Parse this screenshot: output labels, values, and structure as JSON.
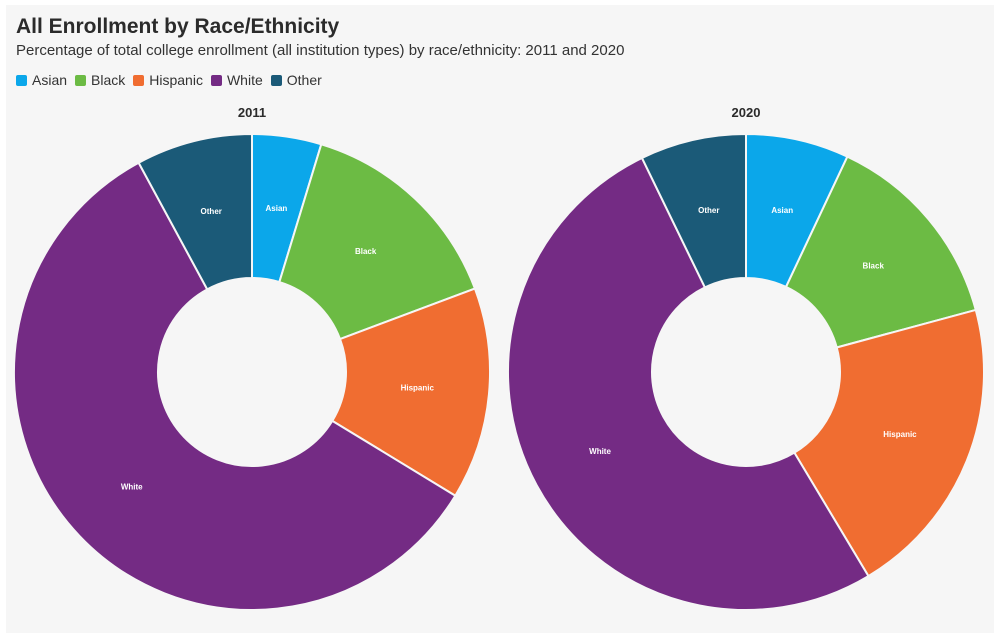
{
  "header": {
    "title": "All Enrollment by Race/Ethnicity",
    "subtitle": "Percentage of total college enrollment (all institution types) by race/ethnicity: 2011 and 2020"
  },
  "colors": {
    "Asian": "#0ba7ea",
    "Black": "#6cbb44",
    "Hispanic": "#f06d31",
    "White": "#742b84",
    "Other": "#1b5a78"
  },
  "legend": {
    "items": [
      "Asian",
      "Black",
      "Hispanic",
      "White",
      "Other"
    ]
  },
  "chart_data": [
    {
      "type": "pie",
      "variant": "donut",
      "title": "2011",
      "categories": [
        "Asian",
        "Black",
        "Hispanic",
        "White",
        "Other"
      ],
      "values": [
        4.7,
        14.6,
        14.4,
        58.4,
        7.9
      ]
    },
    {
      "type": "pie",
      "variant": "donut",
      "title": "2020",
      "categories": [
        "Asian",
        "Black",
        "Hispanic",
        "White",
        "Other"
      ],
      "values": [
        7.0,
        13.8,
        20.6,
        51.4,
        7.2
      ]
    }
  ]
}
